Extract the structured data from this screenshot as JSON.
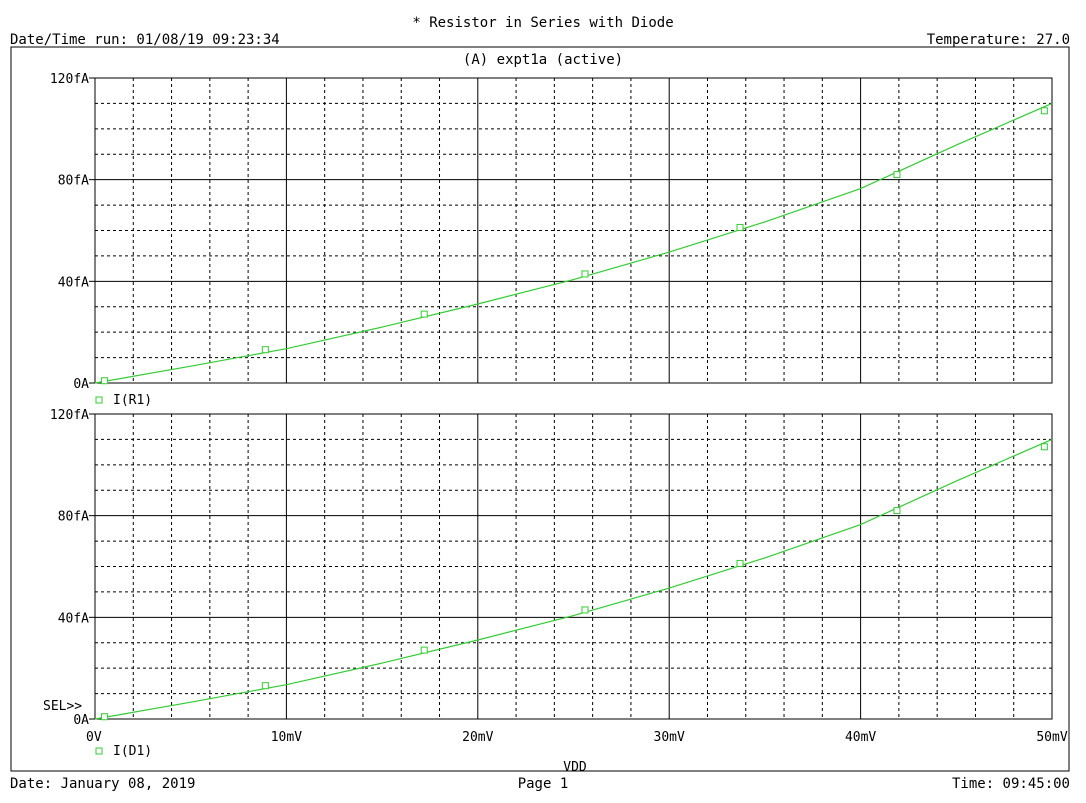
{
  "header": {
    "title": "* Resistor in Series with Diode",
    "date_time_run": "Date/Time run: 01/08/19 09:23:34",
    "temperature": "Temperature: 27.0",
    "subtitle": "(A) expt1a (active)"
  },
  "footer": {
    "date": "Date: January 08, 2019",
    "page": "Page 1",
    "time": "Time: 09:45:00"
  },
  "colors": {
    "trace": "#33cc33",
    "grid": "#000000",
    "background": "#ffffff"
  },
  "sel_marker": "SEL>>",
  "chart_data": [
    {
      "type": "line",
      "title": "",
      "xlabel": "",
      "ylabel": "",
      "xlim": [
        0,
        0.05
      ],
      "ylim": [
        0,
        120
      ],
      "y_unit": "fA",
      "grid": true,
      "x_ticks": [
        "0V",
        "10mV",
        "20mV",
        "30mV",
        "40mV",
        "50mV"
      ],
      "y_ticks": [
        "0A",
        "40fA",
        "80fA",
        "120fA"
      ],
      "series": [
        {
          "name": "I(R1)",
          "color": "#33cc33",
          "x": [
            0,
            0.005,
            0.01,
            0.015,
            0.02,
            0.025,
            0.03,
            0.035,
            0.04,
            0.045,
            0.05
          ],
          "y": [
            0,
            6.6,
            13.5,
            22.0,
            31.1,
            40.7,
            51.5,
            63.4,
            76.5,
            93.6,
            110.0
          ],
          "markers_x": [
            0.0005,
            0.0089,
            0.0172,
            0.0256,
            0.0337,
            0.0419,
            0.0496
          ],
          "markers_y": [
            0.9,
            13.1,
            27.1,
            42.9,
            61.2,
            82.0,
            107.1
          ]
        }
      ]
    },
    {
      "type": "line",
      "title": "",
      "xlabel": "VDD",
      "ylabel": "",
      "xlim": [
        0,
        0.05
      ],
      "ylim": [
        0,
        120
      ],
      "y_unit": "fA",
      "grid": true,
      "x_ticks": [
        "0V",
        "10mV",
        "20mV",
        "30mV",
        "40mV",
        "50mV"
      ],
      "y_ticks": [
        "0A",
        "40fA",
        "80fA",
        "120fA"
      ],
      "series": [
        {
          "name": "I(D1)",
          "color": "#33cc33",
          "x": [
            0,
            0.005,
            0.01,
            0.015,
            0.02,
            0.025,
            0.03,
            0.035,
            0.04,
            0.045,
            0.05
          ],
          "y": [
            0,
            6.6,
            13.5,
            22.0,
            31.1,
            40.7,
            51.5,
            63.4,
            76.5,
            93.6,
            110.0
          ],
          "markers_x": [
            0.0005,
            0.0089,
            0.0172,
            0.0256,
            0.0337,
            0.0419,
            0.0496
          ],
          "markers_y": [
            0.9,
            13.1,
            27.1,
            42.9,
            61.2,
            82.0,
            107.1
          ]
        }
      ]
    }
  ]
}
